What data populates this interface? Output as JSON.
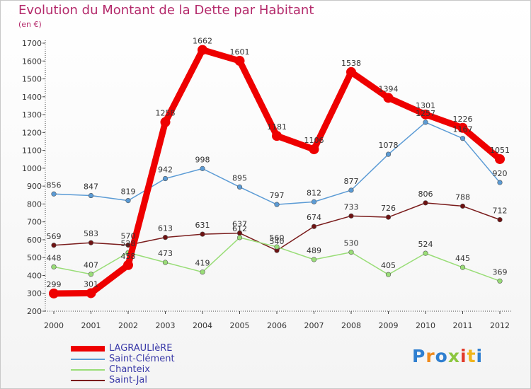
{
  "header": {
    "title": "Evolution du Montant de la Dette par Habitant",
    "unit": "(en €)"
  },
  "logo": {
    "text": "Proxiti",
    "colors": [
      "#2f7fd0",
      "#f08a1c",
      "#2f7fd0",
      "#8cc63f",
      "#e23a2a",
      "#f0b51c",
      "#2f7fd0"
    ]
  },
  "chart_data": {
    "type": "line",
    "title": "Evolution du Montant de la Dette par Habitant",
    "ylabel": "(en €)",
    "xlabel": "",
    "x": [
      "2000",
      "2001",
      "2002",
      "2003",
      "2004",
      "2005",
      "2006",
      "2007",
      "2008",
      "2009",
      "2010",
      "2011",
      "2012"
    ],
    "ylim": [
      200,
      1700
    ],
    "yticks": [
      200,
      300,
      400,
      500,
      600,
      700,
      800,
      900,
      1000,
      1100,
      1200,
      1300,
      1400,
      1500,
      1600,
      1700
    ],
    "grid": false,
    "legend_position": "bottom-left",
    "series": [
      {
        "name": "LAGRAULIèRE",
        "color": "#ee0000",
        "values": [
          299,
          301,
          458,
          1258,
          1662,
          1601,
          1181,
          1106,
          1538,
          1394,
          1301,
          1226,
          1051
        ],
        "labels": [
          "299",
          "301",
          "458",
          "1258",
          "1662",
          "1601",
          "1181",
          "1106",
          "1538",
          "1394",
          "1301",
          "1226",
          "1051"
        ]
      },
      {
        "name": "Saint-Clément",
        "color": "#5b9bd5",
        "values": [
          856,
          847,
          819,
          942,
          998,
          895,
          797,
          812,
          877,
          1078,
          1257,
          1167,
          920
        ],
        "labels": [
          "856",
          "847",
          "819",
          "942",
          "998",
          "895",
          "797",
          "812",
          "877",
          "1078",
          "1257",
          "1167",
          "920"
        ]
      },
      {
        "name": "Chanteix",
        "color": "#99dd77",
        "values": [
          448,
          407,
          528,
          473,
          419,
          612,
          560,
          489,
          530,
          405,
          524,
          445,
          369
        ],
        "labels": [
          "448",
          "407",
          "528",
          "473",
          "419",
          "612",
          "560",
          "489",
          "530",
          "405",
          "524",
          "445",
          "369"
        ]
      },
      {
        "name": "Saint-Jal",
        "color": "#7a1c1c",
        "values": [
          569,
          583,
          570,
          613,
          631,
          637,
          540,
          674,
          733,
          726,
          806,
          788,
          712
        ],
        "labels": [
          "569",
          "583",
          "570",
          "613",
          "631",
          "637",
          "540",
          "674",
          "733",
          "726",
          "806",
          "788",
          "712"
        ]
      }
    ]
  }
}
